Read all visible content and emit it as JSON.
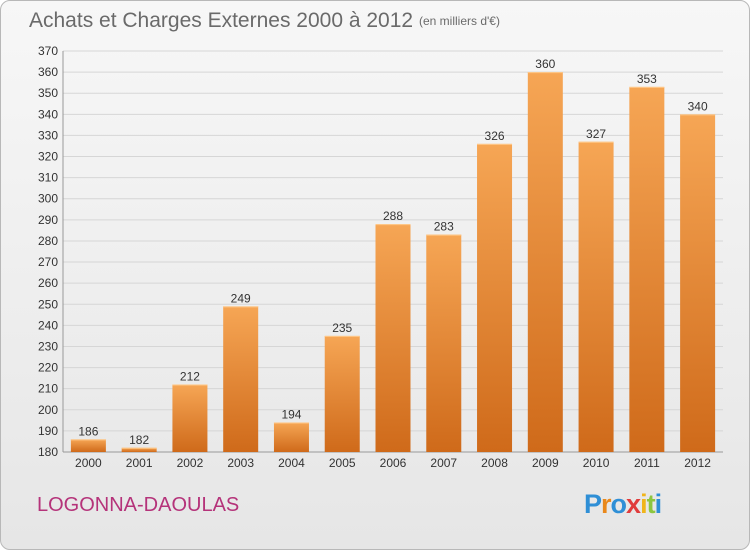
{
  "header": {
    "title": "Achats et Charges Externes 2000 à 2012",
    "subtitle": "(en milliers d'€)"
  },
  "footer": {
    "commune": "LOGONNA-DAOULAS",
    "logo_letters": [
      "P",
      "r",
      "o",
      "x",
      "i",
      "t",
      "i"
    ],
    "logo_colors": [
      "#2f8fd6",
      "#e9881b",
      "#2f8fd6",
      "#e03c3c",
      "#f0b51a",
      "#8dc63f",
      "#2f8fd6"
    ]
  },
  "colors": {
    "bar_top": "#f6a655",
    "bar_bottom": "#cf6a1a",
    "grid": "#d6d6d6",
    "axis_text": "#333333",
    "commune": "#b5337a"
  },
  "chart_data": {
    "type": "bar",
    "title": "Achats et Charges Externes 2000 à 2012",
    "subtitle": "(en milliers d'€)",
    "categories": [
      "2000",
      "2001",
      "2002",
      "2003",
      "2004",
      "2005",
      "2006",
      "2007",
      "2008",
      "2009",
      "2010",
      "2011",
      "2012"
    ],
    "values": [
      186,
      182,
      212,
      249,
      194,
      235,
      288,
      283,
      326,
      360,
      327,
      353,
      340
    ],
    "ylim": [
      180,
      370
    ],
    "ytick_step": 10,
    "grid": true,
    "data_labels": true
  }
}
